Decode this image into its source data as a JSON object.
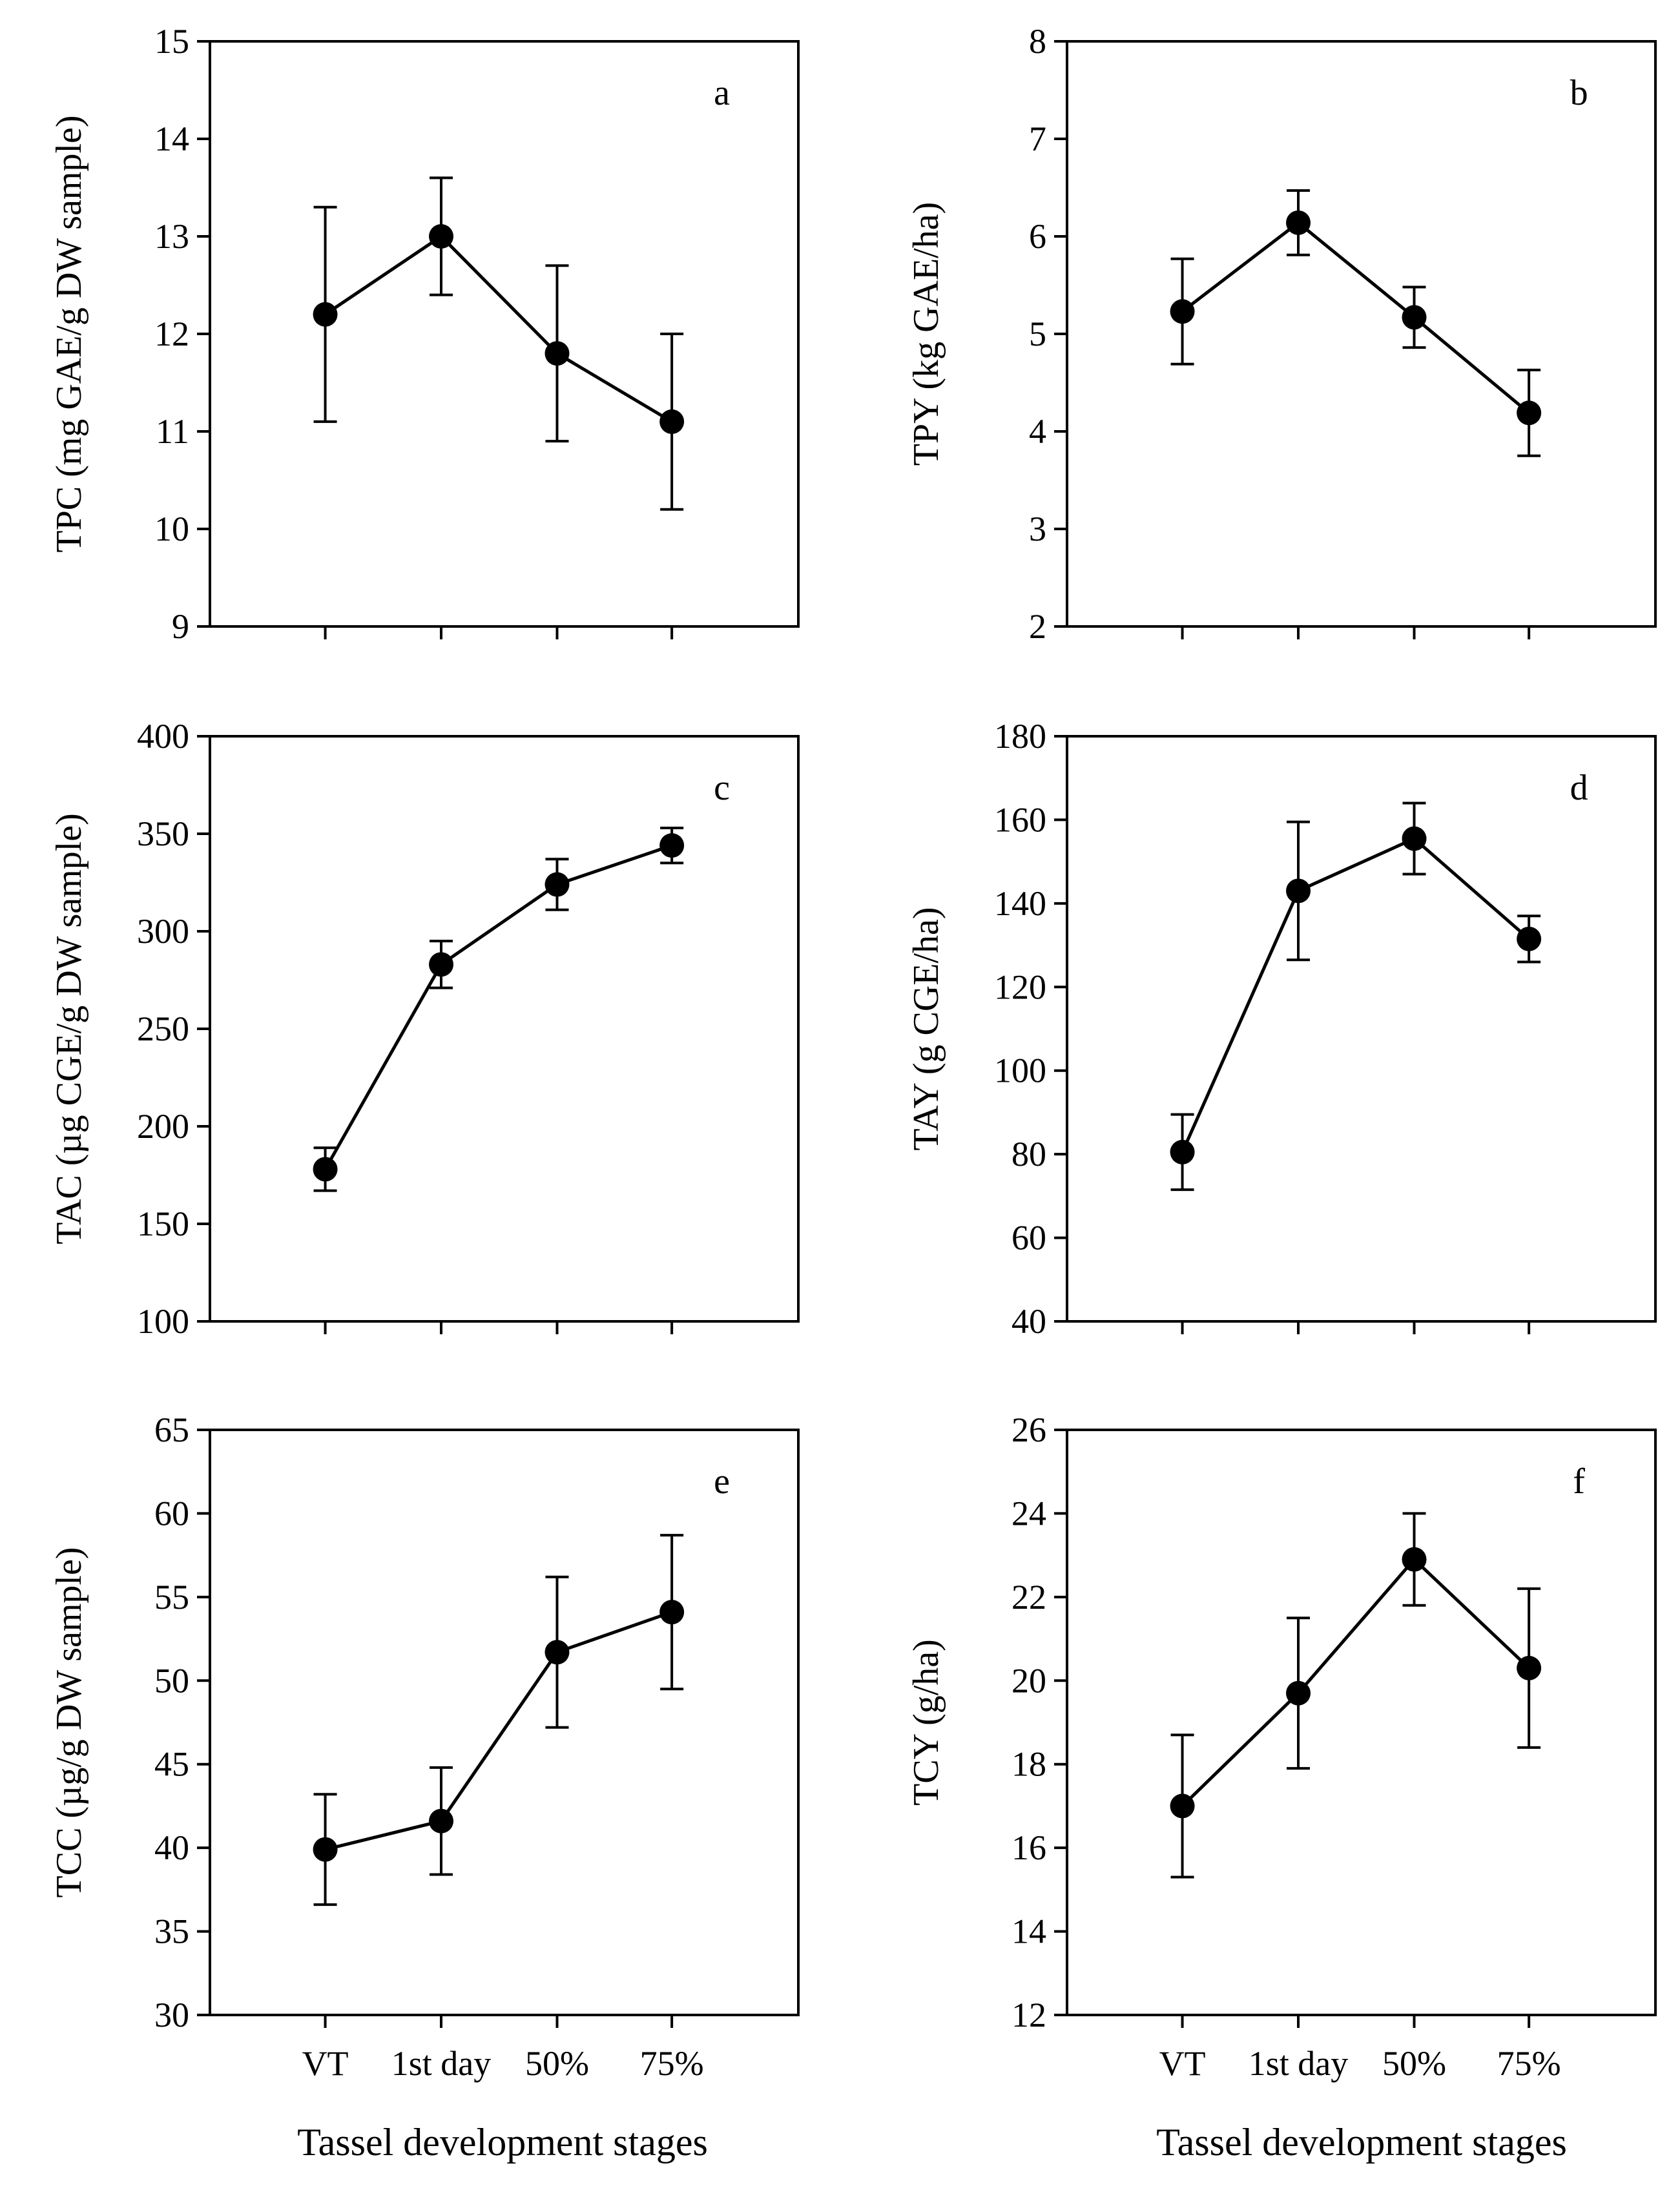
{
  "x_axis_title": "Tassel development stages",
  "categories": [
    "VT",
    "1st day",
    "50%",
    "75%"
  ],
  "chart_data": [
    {
      "type": "line",
      "letter": "a",
      "ylabel": "TPC (mg GAE/g DW sample)",
      "ylim": [
        9,
        15
      ],
      "yticks": [
        9,
        10,
        11,
        12,
        13,
        14,
        15
      ],
      "categories": [
        "VT",
        "1st day",
        "50%",
        "75%"
      ],
      "values": [
        12.2,
        13.0,
        11.8,
        11.1
      ],
      "errors": [
        1.1,
        0.6,
        0.9,
        0.9
      ],
      "xlabel": ""
    },
    {
      "type": "line",
      "letter": "b",
      "ylabel": "TPY (kg GAE/ha)",
      "ylim": [
        2,
        8
      ],
      "yticks": [
        2,
        3,
        4,
        5,
        6,
        7,
        8
      ],
      "categories": [
        "VT",
        "1st day",
        "50%",
        "75%"
      ],
      "values": [
        5.23,
        6.14,
        5.17,
        4.19
      ],
      "errors": [
        0.54,
        0.33,
        0.31,
        0.44
      ],
      "xlabel": ""
    },
    {
      "type": "line",
      "letter": "c",
      "ylabel": "TAC (µg CGE/g DW sample)",
      "ylim": [
        100,
        400
      ],
      "yticks": [
        100,
        150,
        200,
        250,
        300,
        350,
        400
      ],
      "categories": [
        "VT",
        "1st day",
        "50%",
        "75%"
      ],
      "values": [
        178,
        283,
        324,
        344
      ],
      "errors": [
        11,
        12,
        13,
        9
      ],
      "xlabel": ""
    },
    {
      "type": "line",
      "letter": "d",
      "ylabel": "TAY (g CGE/ha)",
      "ylim": [
        40,
        180
      ],
      "yticks": [
        40,
        60,
        80,
        100,
        120,
        140,
        160,
        180
      ],
      "categories": [
        "VT",
        "1st day",
        "50%",
        "75%"
      ],
      "values": [
        80.5,
        143,
        155.5,
        131.5
      ],
      "errors": [
        9,
        16.5,
        8.5,
        5.5
      ],
      "xlabel": ""
    },
    {
      "type": "line",
      "letter": "e",
      "ylabel": "TCC (µg/g DW sample)",
      "ylim": [
        30,
        65
      ],
      "yticks": [
        30,
        35,
        40,
        45,
        50,
        55,
        60,
        65
      ],
      "categories": [
        "VT",
        "1st day",
        "50%",
        "75%"
      ],
      "values": [
        39.9,
        41.6,
        51.7,
        54.1
      ],
      "errors": [
        3.3,
        3.2,
        4.5,
        4.6
      ],
      "xlabel": "Tassel development stages"
    },
    {
      "type": "line",
      "letter": "f",
      "ylabel": "TCY (g/ha)",
      "ylim": [
        12,
        26
      ],
      "yticks": [
        12,
        14,
        16,
        18,
        20,
        22,
        24,
        26
      ],
      "categories": [
        "VT",
        "1st day",
        "50%",
        "75%"
      ],
      "values": [
        17.0,
        19.7,
        22.9,
        20.3
      ],
      "errors": [
        1.7,
        1.8,
        1.1,
        1.9
      ],
      "xlabel": "Tassel development stages"
    }
  ]
}
